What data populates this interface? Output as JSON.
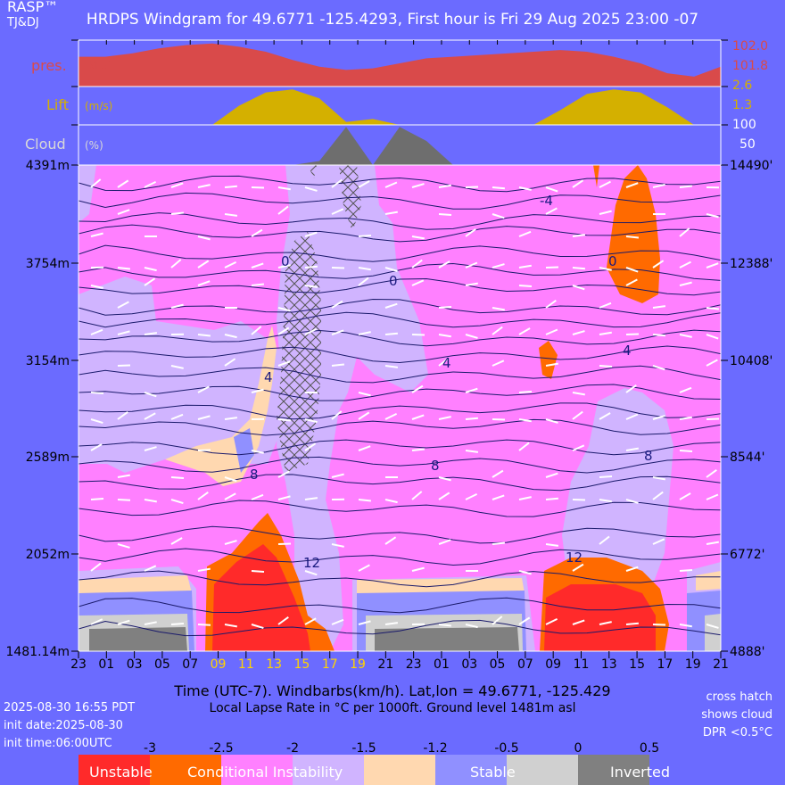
{
  "header": {
    "brand": "RASP™",
    "authors": "TJ&DJ",
    "title": "HRDPS Windgram for 49.6771 -125.4293, First hour is Fri 29 Aug 2025 23:00 -07"
  },
  "panels": {
    "pressure": {
      "label": "pres.",
      "unit": "(kPa)",
      "ticks": [
        "102.0",
        "101.8"
      ],
      "color": "#d94a4a"
    },
    "lift": {
      "label": "Lift",
      "unit": "(m/s)",
      "ticks": [
        "2.6",
        "1.3"
      ],
      "color": "#d4b000"
    },
    "cloud": {
      "label": "Cloud",
      "unit": "(%)",
      "ticks": [
        "100",
        "50"
      ],
      "color": "#6e6e6e"
    }
  },
  "chart_data": {
    "type": "heatmap",
    "x_hours": [
      "23",
      "01",
      "03",
      "05",
      "07",
      "09",
      "11",
      "13",
      "15",
      "17",
      "19",
      "21",
      "23",
      "01",
      "03",
      "05",
      "07",
      "09",
      "11",
      "13",
      "15",
      "17",
      "19",
      "21"
    ],
    "x_hours_highlight": [
      "09",
      "11",
      "13",
      "15",
      "17",
      "19"
    ],
    "y_left_m": [
      "4391m",
      "3754m",
      "3154m",
      "2589m",
      "2052m",
      "1481.14m"
    ],
    "y_right_ft": [
      "14490'",
      "12388'",
      "10408'",
      "8544'",
      "6772'",
      "4888'"
    ],
    "ylim_m": [
      1481.14,
      4391
    ],
    "temperature_contours_C": [
      "-4",
      "0",
      "0",
      "4",
      "4",
      "4",
      "8",
      "8",
      "8",
      "12",
      "12"
    ],
    "pressure_kPa": [
      101.9,
      101.9,
      101.92,
      101.95,
      101.97,
      101.98,
      101.96,
      101.93,
      101.88,
      101.84,
      101.82,
      101.83,
      101.86,
      101.89,
      101.9,
      101.91,
      101.92,
      101.93,
      101.94,
      101.93,
      101.9,
      101.86,
      101.8,
      101.78,
      101.84
    ],
    "lift_ms": [
      0,
      0,
      0,
      0,
      0,
      0,
      1.3,
      2.2,
      2.4,
      1.8,
      0.2,
      0.4,
      0,
      0,
      0,
      0,
      0,
      0,
      1.0,
      2.1,
      2.4,
      2.2,
      1.2,
      0,
      0
    ],
    "cloud_pct": [
      0,
      0,
      0,
      0,
      0,
      0,
      0,
      0,
      0,
      10,
      95,
      0,
      95,
      60,
      0,
      0,
      0,
      0,
      0,
      0,
      0,
      0,
      0,
      0,
      0
    ],
    "legend": {
      "ticks": [
        "-3",
        "-2.5",
        "-2",
        "-1.5",
        "-1.2",
        "-0.5",
        "0",
        "0.5"
      ],
      "categories": [
        {
          "label": "Unstable",
          "color": "#ff2a2a"
        },
        {
          "label": "Conditional Instability",
          "color": "#ff6a00"
        },
        {
          "label": "",
          "color": "#ff80ff"
        },
        {
          "label": "",
          "color": "#d0b4ff"
        },
        {
          "label": "",
          "color": "#ffd8b0"
        },
        {
          "label": "Stable",
          "color": "#9090ff"
        },
        {
          "label": "Inverted",
          "color": "#d0d0d0"
        },
        {
          "label": "",
          "color": "#808080"
        }
      ]
    }
  },
  "footer": {
    "xlabel": "Time (UTC-7). Windbarbs(km/h). Lat,lon = 49.6771, -125.429",
    "xlabel2": "Local Lapse Rate in °C per 1000ft.   Ground level 1481m asl",
    "timestamp": "2025-08-30 16:55 PDT",
    "init_date": "init date:2025-08-30",
    "init_time": "init time:06:00UTC",
    "note1": "cross hatch",
    "note2": "shows cloud",
    "note3": "DPR <0.5°C"
  }
}
